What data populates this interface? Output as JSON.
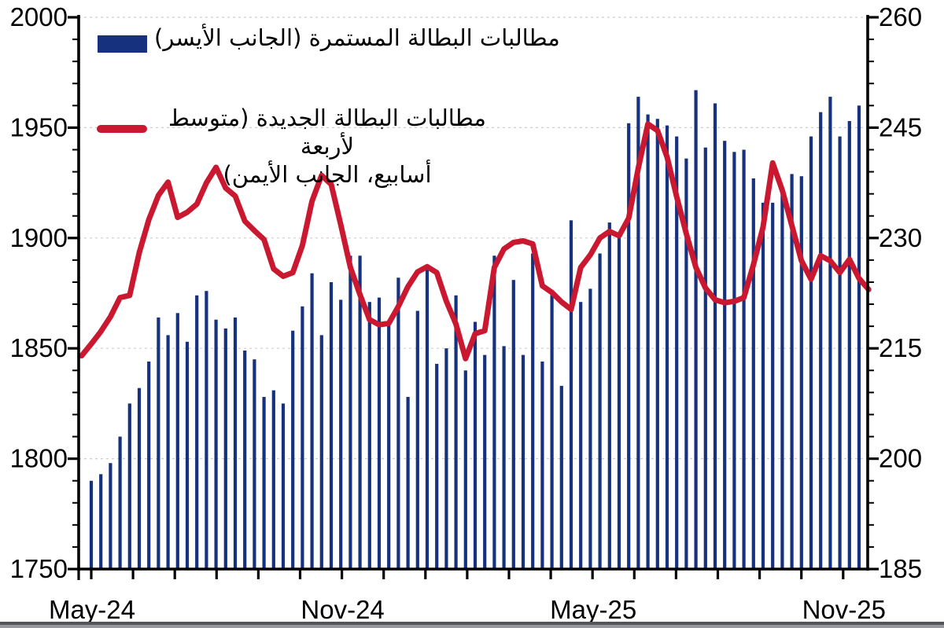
{
  "page": {
    "background": "#ffffff",
    "bottom_edge_color": "#54555a"
  },
  "legend": {
    "continuing": {
      "label": "مطالبات البطالة المستمرة (الجانب الأيسر)",
      "swatch_color": "#16317D"
    },
    "initial": {
      "label_lines": [
        "مطالبات البطالة الجديدة (متوسط لأربعة",
        "أسابيع، الجانب الأيمن)"
      ],
      "swatch_color": "#C9182F"
    }
  },
  "chart_data": {
    "type": "bar",
    "title": "",
    "combo": "weekly bars on left axis + 4-week-average line on right axis",
    "left_axis": {
      "min": 1750,
      "max": 2000,
      "major_step": 50,
      "minor_step": 10,
      "tick_labels": [
        1750,
        1800,
        1850,
        1900,
        1950,
        2000
      ]
    },
    "right_axis": {
      "min": 185,
      "max": 260,
      "major_step": 15,
      "minor_step": 3,
      "tick_labels": [
        185,
        200,
        215,
        230,
        245,
        260
      ]
    },
    "x_axis": {
      "unit": "weeks",
      "month_tick_count": 19,
      "tick_labels": [
        {
          "month_index": 0,
          "text": "May-24"
        },
        {
          "month_index": 6,
          "text": "Nov-24"
        },
        {
          "month_index": 12,
          "text": "May-25"
        },
        {
          "month_index": 18,
          "text": "Nov-25"
        }
      ]
    },
    "grid": {
      "show": true,
      "color": "#CDCDCD",
      "dashed": true
    },
    "legend_position": "top-left-inside",
    "series": [
      {
        "name": "مطالبات البطالة المستمرة (الجانب الأيسر)",
        "type": "bar",
        "axis": "left",
        "color": "#16317D",
        "values": [
          1790,
          1793,
          1798,
          1810,
          1825,
          1832,
          1844,
          1864,
          1856,
          1866,
          1853,
          1874,
          1876,
          1863,
          1859,
          1864,
          1849,
          1845,
          1828,
          1831,
          1825,
          1858,
          1869,
          1884,
          1856,
          1880,
          1872,
          1892,
          1892,
          1871,
          1873,
          1862,
          1882,
          1828,
          1867,
          1888,
          1843,
          1850,
          1874,
          1840,
          1862,
          1847,
          1892,
          1851,
          1881,
          1847,
          1893,
          1844,
          1875,
          1833,
          1908,
          1871,
          1877,
          1893,
          1907,
          1901,
          1952,
          1964,
          1956,
          1954,
          1951,
          1946,
          1936,
          1967,
          1941,
          1961,
          1944,
          1939,
          1940,
          1927,
          1916,
          1916,
          1920,
          1929,
          1928,
          1946,
          1957,
          1964,
          1946,
          1953,
          1960
        ]
      },
      {
        "name": "مطالبات البطالة الجديدة (متوسط لأربعة أسابيع، الجانب الأيمن)",
        "type": "line",
        "axis": "right",
        "color": "#C9182F",
        "x_offset_weeks": -1,
        "values": [
          214.0,
          215.6,
          217.3,
          219.3,
          221.9,
          222.2,
          228.0,
          232.5,
          235.8,
          237.6,
          232.8,
          233.5,
          234.6,
          237.5,
          239.6,
          236.8,
          235.7,
          232.3,
          231.0,
          229.8,
          225.8,
          224.8,
          225.3,
          229.0,
          235.0,
          238.5,
          237.3,
          231.8,
          226.0,
          222.3,
          218.9,
          218.2,
          218.4,
          220.7,
          223.4,
          225.4,
          226.1,
          225.3,
          221.4,
          218.3,
          213.6,
          217.0,
          217.4,
          226.0,
          228.5,
          229.4,
          229.6,
          229.2,
          223.5,
          222.6,
          221.3,
          220.3,
          226.0,
          227.7,
          230.0,
          230.9,
          230.3,
          232.7,
          239.5,
          245.5,
          244.6,
          241.0,
          235.6,
          230.6,
          226.0,
          223.2,
          221.6,
          221.2,
          221.4,
          221.9,
          226.4,
          231.5,
          240.2,
          236.5,
          231.7,
          226.9,
          224.4,
          227.6,
          226.9,
          225.3,
          227.1,
          224.5,
          223.0
        ]
      }
    ]
  }
}
